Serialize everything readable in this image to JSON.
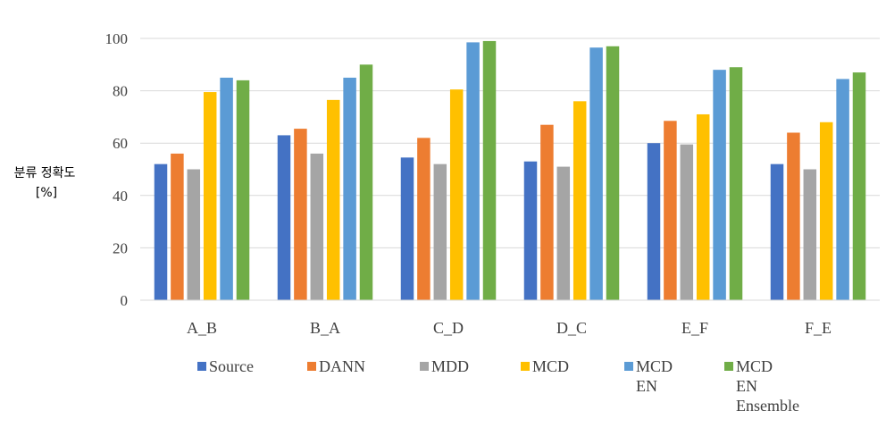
{
  "chart_data": {
    "type": "bar",
    "categories": [
      "A_B",
      "B_A",
      "C_D",
      "D_C",
      "E_F",
      "F_E"
    ],
    "ylabel": [
      "분류 정확도",
      "[%]"
    ],
    "ylim": [
      0,
      100
    ],
    "yticks": [
      0,
      20,
      40,
      60,
      80,
      100
    ],
    "grid": true,
    "legend_position": "bottom",
    "series": [
      {
        "name": "Source",
        "legend_lines": [
          "Source"
        ],
        "color": "#4472c4",
        "values": [
          52,
          63,
          54.5,
          53,
          60,
          52
        ]
      },
      {
        "name": "DANN",
        "legend_lines": [
          "DANN"
        ],
        "color": "#ed7d31",
        "values": [
          56,
          65.5,
          62,
          67,
          68.5,
          64
        ]
      },
      {
        "name": "MDD",
        "legend_lines": [
          "MDD"
        ],
        "color": "#a5a5a5",
        "values": [
          50,
          56,
          52,
          51,
          59.5,
          50
        ]
      },
      {
        "name": "MCD",
        "legend_lines": [
          "MCD"
        ],
        "color": "#ffc000",
        "values": [
          79.5,
          76.5,
          80.5,
          76,
          71,
          68
        ]
      },
      {
        "name": "MCD EN",
        "legend_lines": [
          "MCD",
          "EN"
        ],
        "color": "#5b9bd5",
        "values": [
          85,
          85,
          98.5,
          96.5,
          88,
          84.5
        ]
      },
      {
        "name": "MCD EN Ensemble",
        "legend_lines": [
          "MCD",
          "EN",
          "Ensemble"
        ],
        "color": "#70ad47",
        "values": [
          84,
          90,
          99,
          97,
          89,
          87
        ]
      }
    ]
  }
}
